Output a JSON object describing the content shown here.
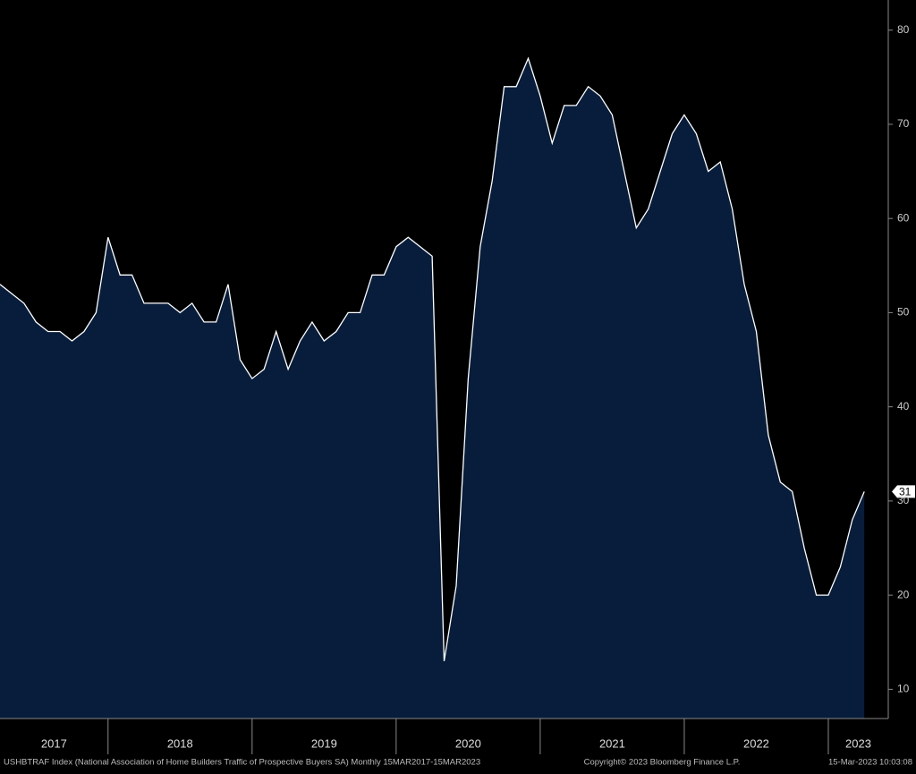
{
  "chart_data": {
    "type": "area",
    "categories": [
      null,
      null,
      null,
      null,
      null,
      null,
      null,
      null,
      null,
      null,
      null,
      null,
      null,
      null,
      null,
      null,
      null,
      null,
      null,
      null,
      null,
      null,
      null,
      null,
      null,
      null,
      null,
      null,
      null,
      null,
      null,
      null,
      null,
      null,
      null,
      null,
      null,
      null,
      null,
      null,
      null,
      null,
      null,
      null,
      null,
      null,
      null,
      null,
      null,
      null,
      null,
      null,
      null,
      null,
      null,
      null,
      null,
      null,
      null,
      null,
      null,
      null,
      null,
      null,
      null,
      null,
      null,
      null,
      null,
      null,
      null,
      null,
      null
    ],
    "year_labels": [
      "2017",
      "2018",
      "2019",
      "2020",
      "2021",
      "2022",
      "2023"
    ],
    "series": [
      {
        "name": "USHBTRAF Index",
        "color": "#ffffff",
        "fill": "#071d3b",
        "values": [
          53,
          52,
          51,
          49,
          48,
          48,
          47,
          48,
          50,
          58,
          54,
          54,
          51,
          51,
          51,
          50,
          51,
          49,
          49,
          53,
          45,
          43,
          44,
          48,
          44,
          47,
          49,
          47,
          48,
          50,
          50,
          54,
          54,
          57,
          58,
          57,
          56,
          13,
          21,
          43,
          57,
          64,
          74,
          74,
          77,
          73,
          68,
          72,
          72,
          74,
          73,
          71,
          65,
          59,
          61,
          65,
          69,
          71,
          69,
          65,
          66,
          61,
          53,
          48,
          37,
          32,
          31,
          25,
          20,
          20,
          23,
          28,
          31
        ]
      }
    ],
    "ylim": [
      6.9,
      83.2
    ],
    "yticks": [
      10,
      20,
      30,
      40,
      50,
      60,
      70,
      80
    ],
    "footer": {
      "left": "USHBTRAF Index (National Association of Home Builders Traffic of Prospective Buyers SA)  Monthly 15MAR2017-15MAR2023",
      "center": "Copyright© 2023 Bloomberg Finance L.P.",
      "right": "15-Mar-2023 10:03:08"
    }
  }
}
